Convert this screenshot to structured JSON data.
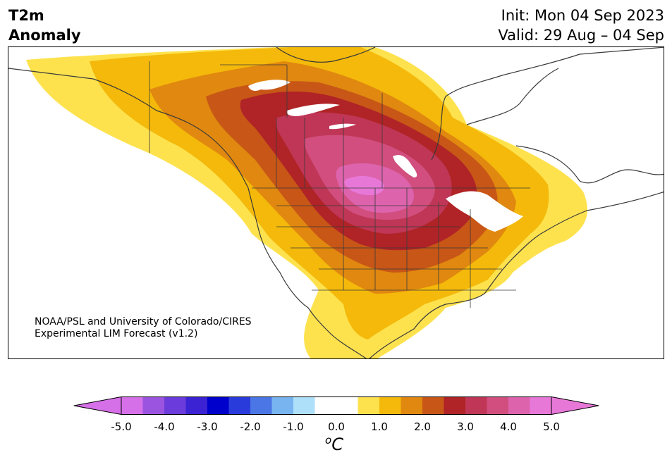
{
  "title": {
    "line1": "T2m",
    "line2": "Anomaly"
  },
  "init": "Init: Mon 04 Sep 2023",
  "valid": "Valid: 29 Aug – 04 Sep",
  "credit": {
    "line1": "NOAA/PSL and University of Colorado/CIRES",
    "line2": "Experimental LIM Forecast (v1.2)"
  },
  "colorbar": {
    "ticks": [
      "-5.0",
      "-4.0",
      "-3.0",
      "-2.0",
      "-1.0",
      "0.0",
      "1.0",
      "2.0",
      "3.0",
      "4.0",
      "5.0"
    ],
    "unit": "C",
    "unit_prefix": "o",
    "colors": [
      "#d670e8",
      "#9b54e0",
      "#6b3bdc",
      "#3b22d2",
      "#0000cc",
      "#2a3bdc",
      "#4a76e6",
      "#78b4f0",
      "#aee0fa",
      "#ffffff",
      "#ffffff",
      "#fde24e",
      "#f4b90a",
      "#e0880f",
      "#c75617",
      "#b02326",
      "#bf3656",
      "#d14e7e",
      "#dd63ad",
      "#e878d8"
    ],
    "extend_low": "#d670e8",
    "extend_high": "#e878d8"
  }
}
